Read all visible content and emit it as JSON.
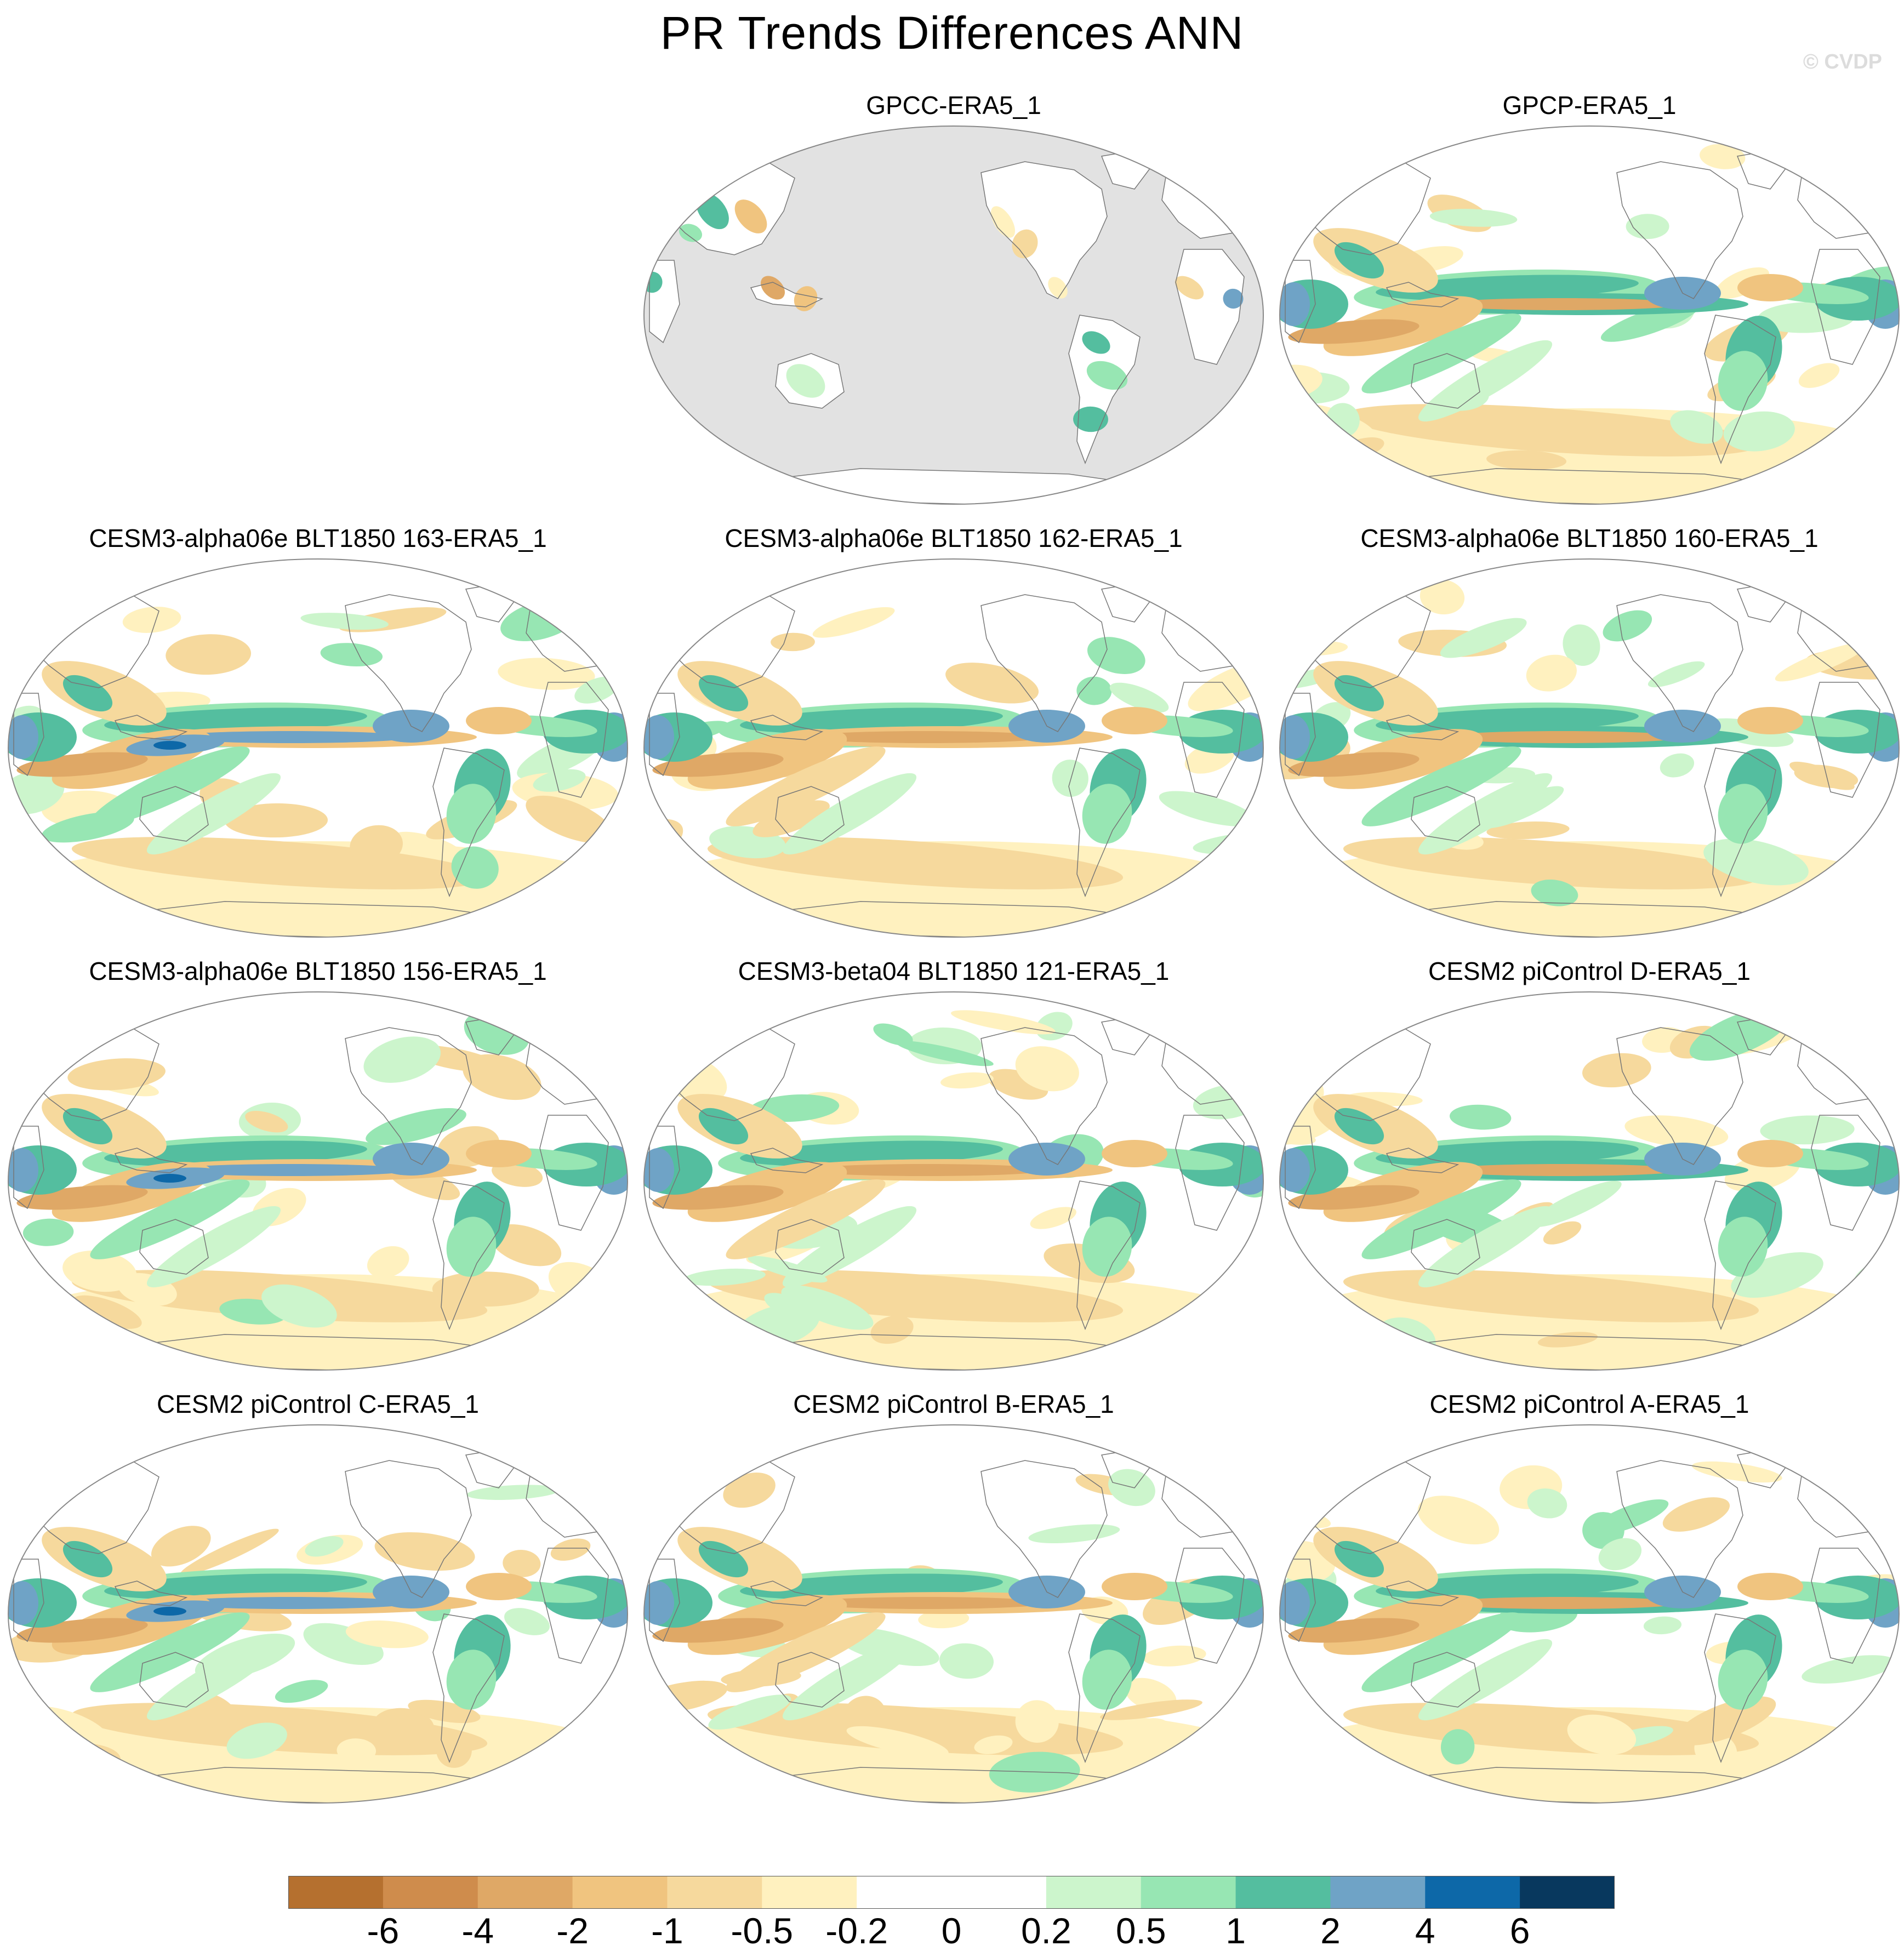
{
  "title": "PR Trends Differences ANN",
  "copyright": "© CVDP",
  "colorbar": {
    "colors": [
      "#b5702f",
      "#cf8c4c",
      "#dfa866",
      "#f0c47f",
      "#f6d99d",
      "#fff1bf",
      "#ffffff",
      "#ffffff",
      "#ccf5cc",
      "#97e6b3",
      "#54be9f",
      "#6fa3c6",
      "#0d68a8",
      "#08385e"
    ],
    "labels": [
      "-6",
      "-4",
      "-2",
      "-1",
      "-0.5",
      "-0.2",
      "0",
      "0.2",
      "0.5",
      "1",
      "2",
      "4",
      "6"
    ]
  },
  "panels": [
    {
      "title": "GPCC-ERA5_1",
      "land_only": true
    },
    {
      "title": "GPCP-ERA5_1",
      "land_only": false
    },
    {
      "title": "CESM3-alpha06e BLT1850 163-ERA5_1",
      "land_only": false
    },
    {
      "title": "CESM3-alpha06e BLT1850 162-ERA5_1",
      "land_only": false
    },
    {
      "title": "CESM3-alpha06e BLT1850 160-ERA5_1",
      "land_only": false
    },
    {
      "title": "CESM3-alpha06e BLT1850 156-ERA5_1",
      "land_only": false
    },
    {
      "title": "CESM3-beta04 BLT1850 121-ERA5_1",
      "land_only": false
    },
    {
      "title": "CESM2 piControl D-ERA5_1",
      "land_only": false
    },
    {
      "title": "CESM2 piControl C-ERA5_1",
      "land_only": false
    },
    {
      "title": "CESM2 piControl B-ERA5_1",
      "land_only": false
    },
    {
      "title": "CESM2 piControl A-ERA5_1",
      "land_only": false
    }
  ]
}
